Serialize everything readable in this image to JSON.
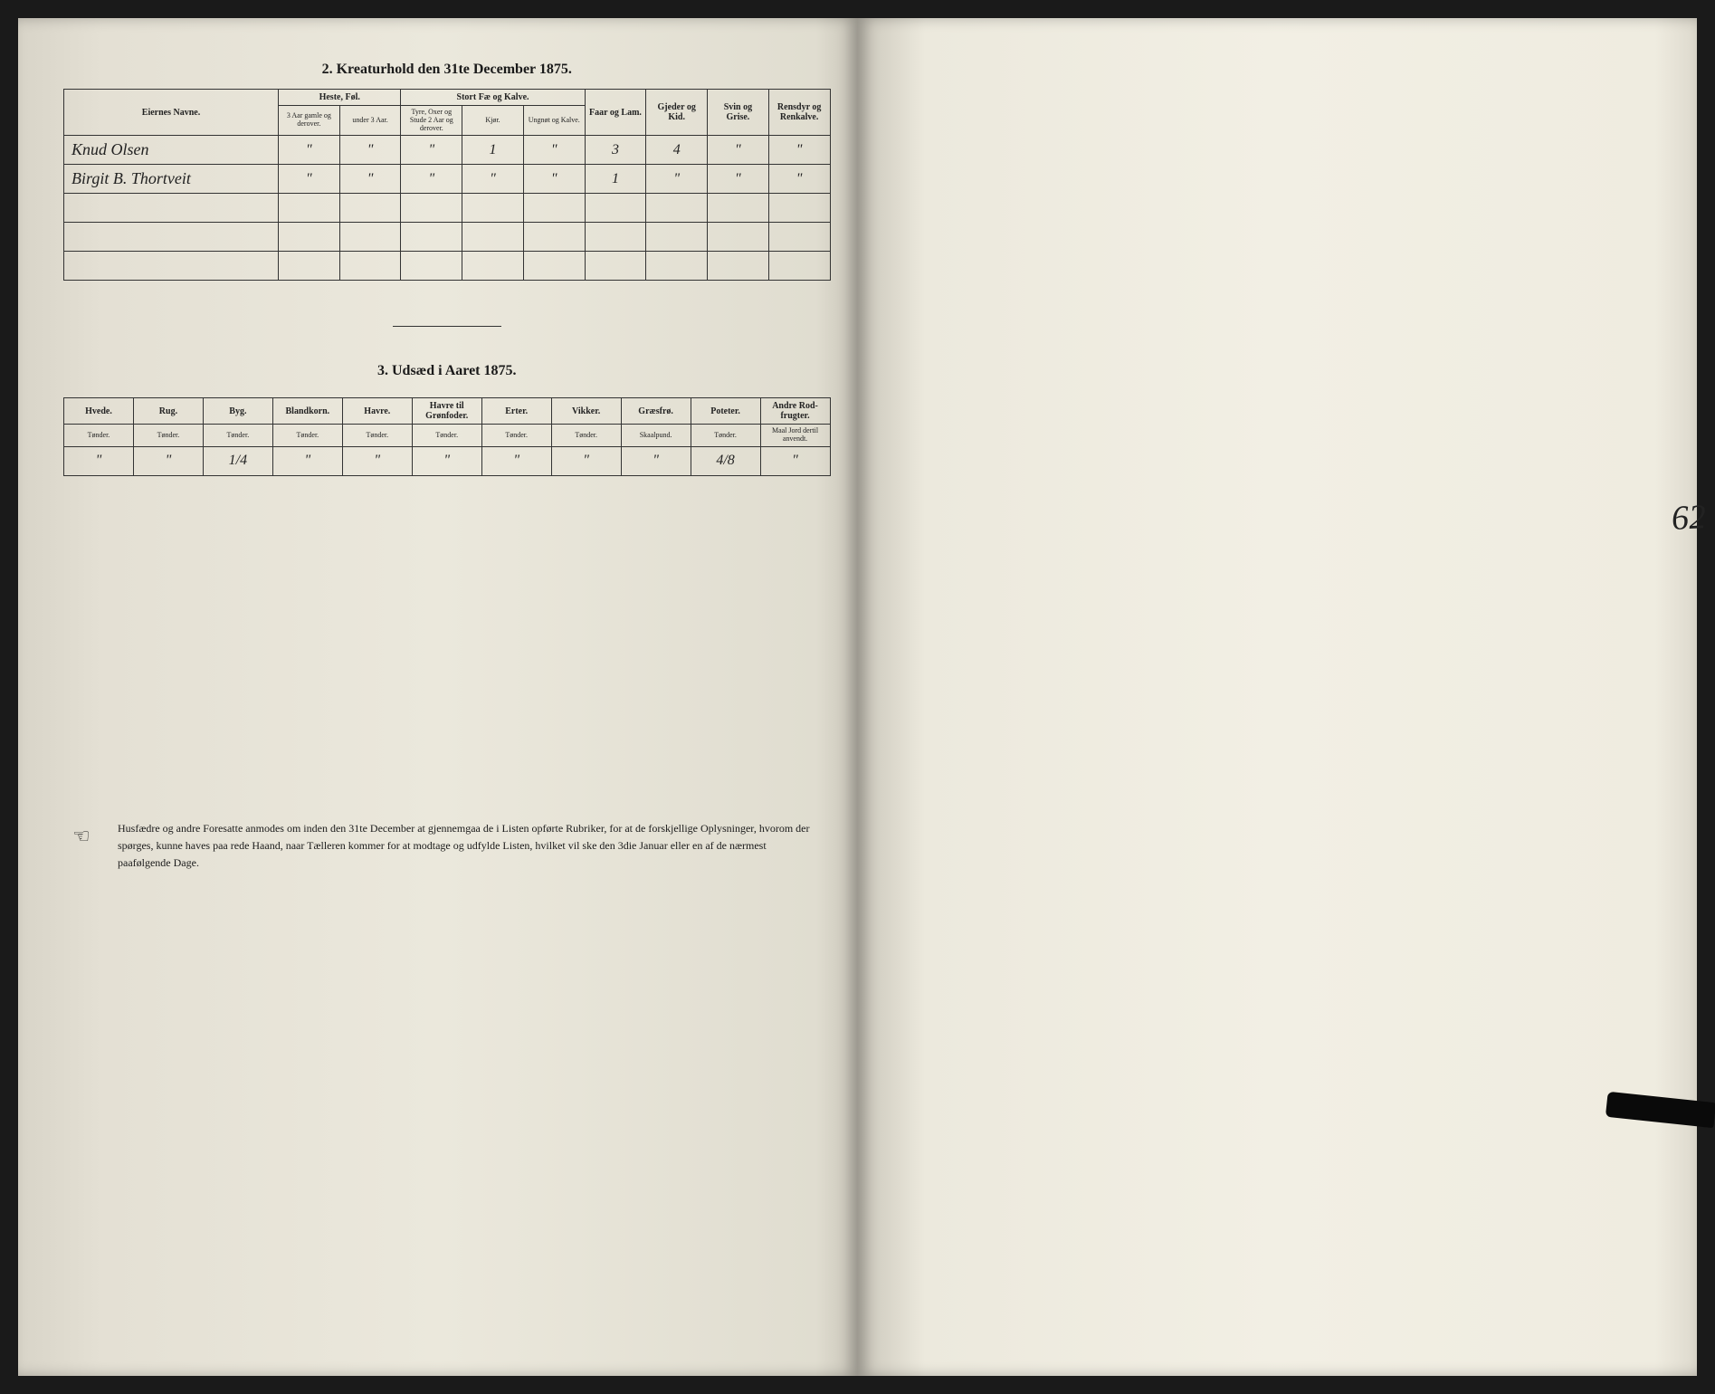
{
  "section2": {
    "title": "2.  Kreaturhold den 31te December 1875.",
    "headers": {
      "name": "Eiernes Navne.",
      "group1": "Heste, Føl.",
      "group1_sub1": "3 Aar gamle og derover.",
      "group1_sub2": "under 3 Aar.",
      "group2": "Stort Fæ og Kalve.",
      "group2_sub1": "Tyre, Oxer og Stude 2 Aar og derover.",
      "group2_sub2": "Kjør.",
      "group2_sub3": "Ungnøt og Kalve.",
      "col_faar": "Faar og Lam.",
      "col_gjeder": "Gjeder og Kid.",
      "col_svin": "Svin og Grise.",
      "col_rensdyr": "Rensdyr og Renkalve."
    },
    "rows": [
      {
        "name": "Knud Olsen",
        "c1": "\"",
        "c2": "\"",
        "c3": "\"",
        "c4": "1",
        "c5": "\"",
        "c6": "3",
        "c7": "4",
        "c8": "\"",
        "c9": "\""
      },
      {
        "name": "Birgit B. Thortveit",
        "c1": "\"",
        "c2": "\"",
        "c3": "\"",
        "c4": "\"",
        "c5": "\"",
        "c6": "1",
        "c7": "\"",
        "c8": "\"",
        "c9": "\""
      }
    ]
  },
  "section3": {
    "title": "3.  Udsæd i Aaret 1875.",
    "headers": [
      {
        "top": "Hvede.",
        "sub": "Tønder."
      },
      {
        "top": "Rug.",
        "sub": "Tønder."
      },
      {
        "top": "Byg.",
        "sub": "Tønder."
      },
      {
        "top": "Blandkorn.",
        "sub": "Tønder."
      },
      {
        "top": "Havre.",
        "sub": "Tønder."
      },
      {
        "top": "Havre til Grønfoder.",
        "sub": "Tønder."
      },
      {
        "top": "Erter.",
        "sub": "Tønder."
      },
      {
        "top": "Vikker.",
        "sub": "Tønder."
      },
      {
        "top": "Græsfrø.",
        "sub": "Skaalpund."
      },
      {
        "top": "Poteter.",
        "sub": "Tønder."
      },
      {
        "top": "Andre Rod-frugter.",
        "sub": "Maal Jord dertil anvendt."
      }
    ],
    "row": [
      "\"",
      "\"",
      "1/4",
      "\"",
      "\"",
      "\"",
      "\"",
      "\"",
      "\"",
      "4/8",
      "\""
    ]
  },
  "footer": "Husfædre og andre Foresatte anmodes om inden den 31te December at gjennemgaa de i Listen opførte Rubriker, for at de forskjellige Oplysninger, hvorom der spørges, kunne haves paa rede Haand, naar Tælleren kommer for at modtage og udfylde Listen, hvilket vil ske den 3die Januar eller en af de nærmest paafølgende Dage.",
  "right_annotation": "62"
}
